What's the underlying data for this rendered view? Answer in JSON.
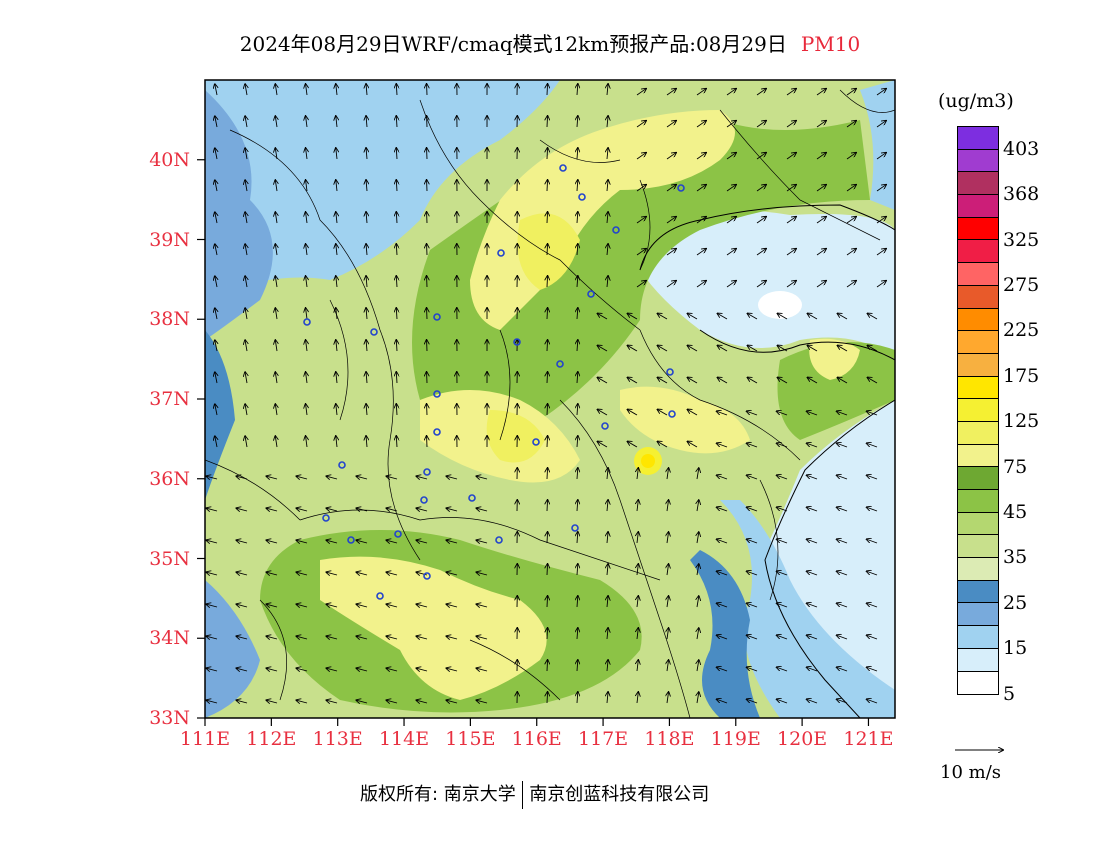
{
  "title": {
    "main": "2024年08月29日WRF/cmaq模式12km预报产品:08月29日",
    "variable": "PM10"
  },
  "axes": {
    "lat_labels": [
      "40N",
      "39N",
      "38N",
      "37N",
      "36N",
      "35N",
      "34N",
      "33N"
    ],
    "lon_labels": [
      "111E",
      "112E",
      "113E",
      "114E",
      "115E",
      "116E",
      "117E",
      "118E",
      "119E",
      "120E",
      "121E"
    ]
  },
  "legend": {
    "unit": "(ug/m3)",
    "labels": [
      "403",
      "368",
      "325",
      "275",
      "225",
      "175",
      "125",
      "75",
      "45",
      "35",
      "25",
      "15",
      "5"
    ],
    "colors": [
      "#7d2ee0",
      "#a03cd0",
      "#b03060",
      "#cc1e78",
      "#ff0000",
      "#f01e46",
      "#ff6464",
      "#e85a2a",
      "#ff8c00",
      "#ffa82e",
      "#f7b040",
      "#ffe600",
      "#f5f032",
      "#f0f060",
      "#f2f28c",
      "#6ea832",
      "#8cc346",
      "#b4d770",
      "#c8e08c",
      "#dcebb4",
      "#4a8cc3",
      "#78aadc",
      "#a0d2f0",
      "#d7eefa",
      "#ffffff"
    ]
  },
  "wind_reference": "10 m/s",
  "footer": {
    "left": "版权所有: 南京大学",
    "right": "南京创蓝科技有限公司"
  },
  "map_data": {
    "field": "PM10",
    "lon_range": [
      111,
      121.4
    ],
    "lat_range": [
      33,
      41
    ],
    "colors": {
      "sea": "#d7eefa",
      "light_blue": "#a0d2f0",
      "mid_blue": "#78aadc",
      "dark_blue": "#4a8cc3",
      "pale_green": "#dcebb4",
      "light_green": "#c8e08c",
      "green": "#b4d770",
      "mid_green": "#8cc346",
      "dark_green": "#6ea832",
      "pale_yellow": "#f2f28c",
      "yellow": "#f0f060",
      "bright_yellow": "#f5f032",
      "peak": "#ffe600",
      "boundary": "#000000",
      "station": "#2244cc"
    }
  }
}
